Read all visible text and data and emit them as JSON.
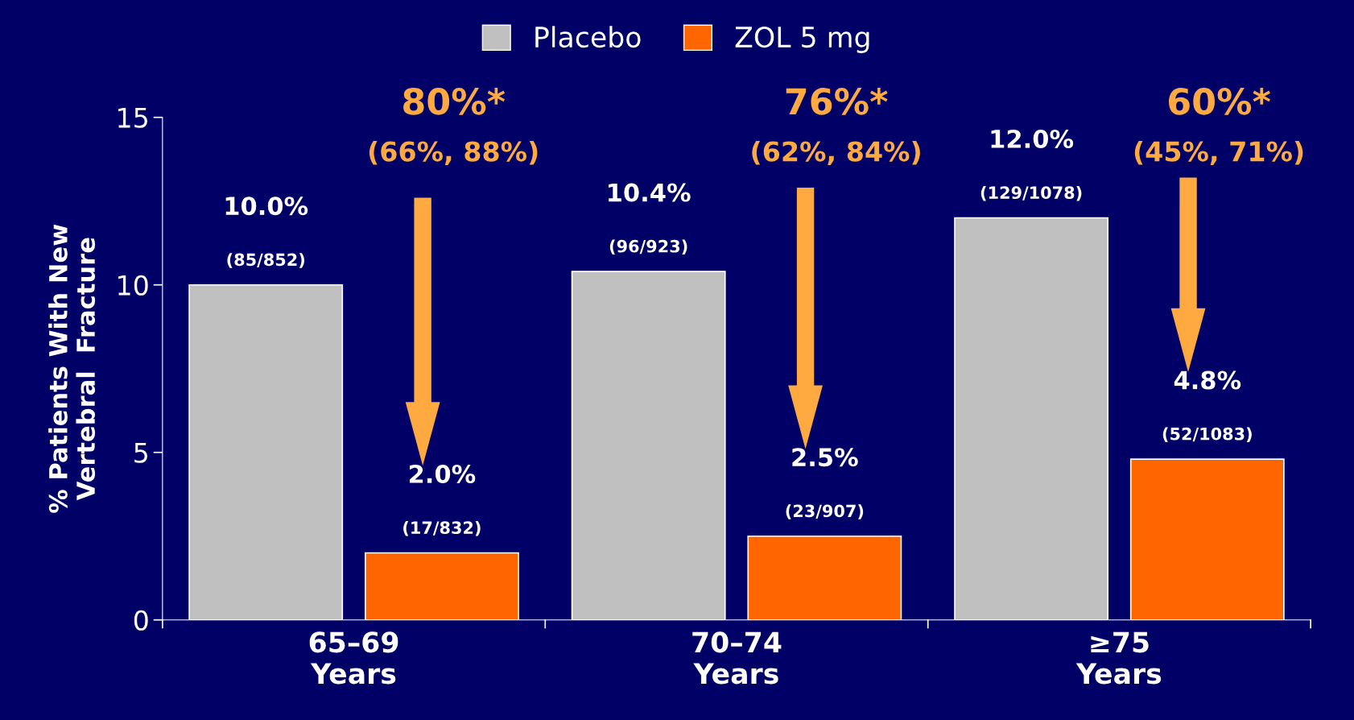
{
  "chart_data": {
    "type": "bar",
    "categories": [
      "65–69\nYears",
      "70–74\nYears",
      "≥75\nYears"
    ],
    "ylabel": "% Patients With New\nVertebral  Fracture",
    "ylim": [
      0,
      15
    ],
    "yticks": [
      0,
      5,
      10,
      15
    ],
    "series": [
      {
        "name": "Placebo",
        "color": "#c0c0c0",
        "values": [
          10.0,
          10.4,
          12.0
        ],
        "value_labels": [
          "10.0%\n(85/852)",
          "10.4%\n(96/923)",
          "12.0%\n(129/1078)"
        ]
      },
      {
        "name": "ZOL 5 mg",
        "color": "#ff6600",
        "values": [
          2.0,
          2.5,
          4.8
        ],
        "value_labels": [
          "2.0%\n(17/832)",
          "2.5%\n(23/907)",
          "4.8%\n(52/1083)"
        ]
      }
    ],
    "annotations": [
      "80%*\n(66%, 88%)",
      "76%*\n(62%, 84%)",
      "60%*\n(45%, 71%)"
    ],
    "legend": "top",
    "grid": false
  }
}
